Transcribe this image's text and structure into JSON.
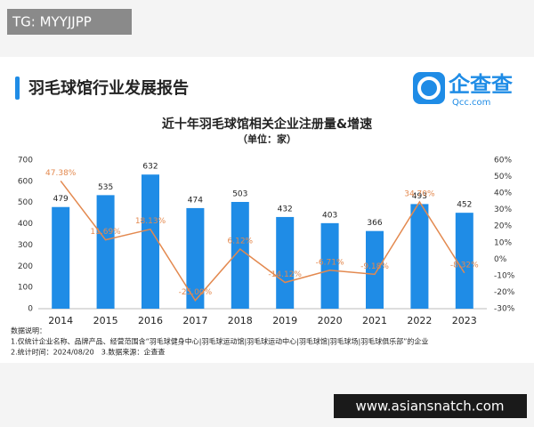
{
  "watermark": "TG: MYYJJPP",
  "header": {
    "title": "羽毛球馆行业发展报告",
    "logo_name": "企查查",
    "logo_url": "Qcc.com"
  },
  "chart_data": {
    "type": "bar",
    "title": "近十年羽毛球馆相关企业注册量&增速",
    "subtitle": "（单位：家）",
    "categories": [
      "2014",
      "2015",
      "2016",
      "2017",
      "2018",
      "2019",
      "2020",
      "2021",
      "2022",
      "2023"
    ],
    "series": [
      {
        "type": "bar",
        "color": "#1f8ce6",
        "values": [
          479,
          535,
          632,
          474,
          503,
          432,
          403,
          366,
          493,
          452
        ]
      },
      {
        "type": "line",
        "axis": "y2",
        "color": "#e3894f",
        "values": [
          47.38,
          11.69,
          18.13,
          -25.0,
          6.12,
          -14.12,
          -6.71,
          -9.18,
          34.7,
          -8.32
        ],
        "value_labels": [
          "47.38%",
          "11.69%",
          "18.13%",
          "-25.00%",
          "6.12%",
          "-14.12%",
          "-6.71%",
          "-9.18%",
          "34.70%",
          "-8.32%"
        ]
      }
    ],
    "ylim": [
      0,
      700
    ],
    "yticks": [
      0,
      100,
      200,
      300,
      400,
      500,
      600,
      700
    ],
    "y2lim": [
      -30,
      60
    ],
    "y2ticks": [
      {
        "value": -30,
        "label": "-30%"
      },
      {
        "value": -20,
        "label": "-20%"
      },
      {
        "value": -10,
        "label": "-10%"
      },
      {
        "value": 0,
        "label": "0%"
      },
      {
        "value": 10,
        "label": "10%"
      },
      {
        "value": 20,
        "label": "20%"
      },
      {
        "value": 30,
        "label": "30%"
      },
      {
        "value": 40,
        "label": "40%"
      },
      {
        "value": 50,
        "label": "50%"
      },
      {
        "value": 60,
        "label": "60%"
      }
    ],
    "grid": false
  },
  "notes": [
    "数据说明：",
    "1.仅统计企业名称、品牌产品、经营范围含“羽毛球健身中心|羽毛球运动馆|羽毛球运动中心|羽毛球馆|羽毛球场|羽毛球俱乐部”的企业",
    "2.统计时间：2024/08/20　3.数据来源：企查查"
  ],
  "footer_url": "www.asiansnatch.com"
}
